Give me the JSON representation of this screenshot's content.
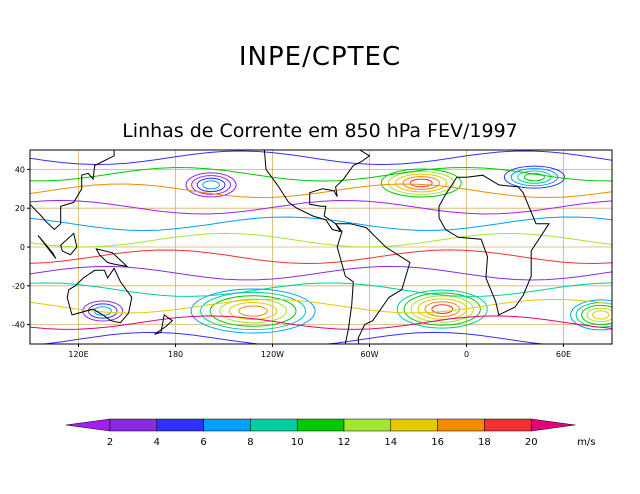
{
  "header": {
    "title": "INPE/CPTEC"
  },
  "map": {
    "title": "Linhas de Corrente em 850 hPa FEV/1997",
    "lat_ticks": [
      {
        "value": 40,
        "label": "40"
      },
      {
        "value": 20,
        "label": "20"
      },
      {
        "value": 0,
        "label": "0"
      },
      {
        "value": -20,
        "label": "-20"
      },
      {
        "value": -40,
        "label": "-40"
      }
    ],
    "lon_ticks": [
      {
        "value": 120,
        "label": "120E"
      },
      {
        "value": 180,
        "label": "180"
      },
      {
        "value": 240,
        "label": "120W"
      },
      {
        "value": 300,
        "label": "60W"
      },
      {
        "value": 360,
        "label": "0"
      },
      {
        "value": 420,
        "label": "60E"
      }
    ],
    "lon_range": [
      90,
      450
    ],
    "lat_range": [
      -50,
      50
    ],
    "grid": true,
    "grid_color": "#d4b06a"
  },
  "colorbar": {
    "unit": "m/s",
    "labels": [
      "2",
      "4",
      "6",
      "8",
      "10",
      "12",
      "14",
      "16",
      "18",
      "20"
    ],
    "colors": [
      "#a020f0",
      "#8a2be2",
      "#3030ff",
      "#00a0ff",
      "#00d0a0",
      "#00c800",
      "#a0e632",
      "#e6c800",
      "#f08c00",
      "#f03232",
      "#e6007a"
    ]
  }
}
